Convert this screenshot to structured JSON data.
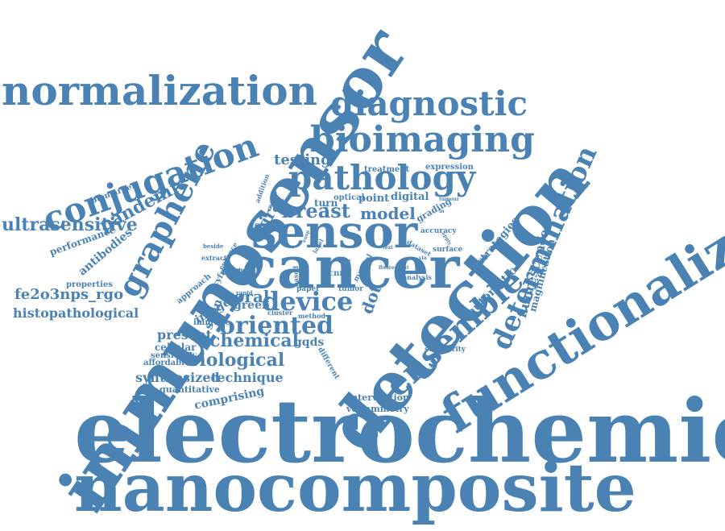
{
  "cloud": {
    "color": "#4a82b4",
    "words": [
      "electrochemical",
      "nanocomposite",
      "immunosensor",
      "detection",
      "functionalized",
      "cancer",
      "sensor",
      "normalization",
      "diagnostic",
      "bioimaging",
      "pathology",
      "conjugation",
      "graphene",
      "ensemble",
      "determination",
      "ultrasensitive",
      "pandemic",
      "device",
      "oriented",
      "breast",
      "model",
      "fe2o3nps_rgo",
      "histopathological",
      "chemical",
      "biological",
      "synthesized",
      "technique",
      "comprising",
      "fluorescence",
      "antibodies",
      "viral",
      "testing",
      "point",
      "digital",
      "grading",
      "strategies",
      "automatic",
      "magnification",
      "performance",
      "biomarker",
      "treatment",
      "expression",
      "turn",
      "optical",
      "accuracy",
      "surface",
      "analysis",
      "dataset",
      "care",
      "oral",
      "green",
      "stain",
      "image",
      "present",
      "cellular",
      "sensitivity",
      "affordable",
      "quantitative",
      "properties",
      "approach",
      "immune",
      "cluster",
      "method",
      "gqds",
      "dot",
      "cnns",
      "tumor",
      "paper",
      "manual",
      "intervention",
      "voltammetry",
      "selectivity",
      "different",
      "sar",
      "extract",
      "beside",
      "enhance",
      "cyfra",
      "based",
      "rapid",
      "quick",
      "addition",
      "recent",
      "label",
      "free",
      "ensp",
      "tumour",
      "in",
      "text",
      "via",
      "cell",
      "apply",
      "fluorescent"
    ]
  }
}
